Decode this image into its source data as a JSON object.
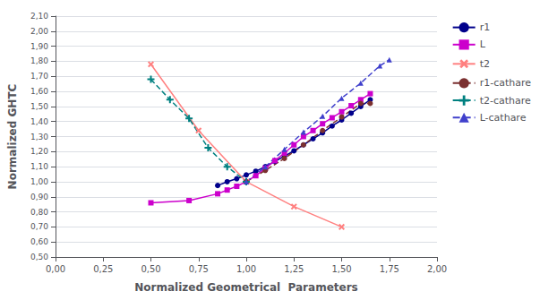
{
  "chart_data": {
    "type": "line",
    "xlabel": "Normalized Geometrical  Parameters",
    "ylabel": "Normalized GHTC",
    "xlim": [
      0.0,
      2.0
    ],
    "ylim": [
      0.5,
      2.1
    ],
    "xticks": [
      {
        "value": 0.0,
        "label": "0,00"
      },
      {
        "value": 0.25,
        "label": "0,25"
      },
      {
        "value": 0.5,
        "label": "0,50"
      },
      {
        "value": 0.75,
        "label": "0,75"
      },
      {
        "value": 1.0,
        "label": "1,00"
      },
      {
        "value": 1.25,
        "label": "1,25"
      },
      {
        "value": 1.5,
        "label": "1,50"
      },
      {
        "value": 1.75,
        "label": "1,75"
      },
      {
        "value": 2.0,
        "label": "2,00"
      }
    ],
    "yticks": [
      {
        "value": 0.5,
        "label": "0,50"
      },
      {
        "value": 0.6,
        "label": "0,60"
      },
      {
        "value": 0.7,
        "label": "0,70"
      },
      {
        "value": 0.8,
        "label": "0,80"
      },
      {
        "value": 0.9,
        "label": "0,90"
      },
      {
        "value": 1.0,
        "label": "1,00"
      },
      {
        "value": 1.1,
        "label": "1,10"
      },
      {
        "value": 1.2,
        "label": "1,20"
      },
      {
        "value": 1.3,
        "label": "1,30"
      },
      {
        "value": 1.4,
        "label": "1,40"
      },
      {
        "value": 1.5,
        "label": "1,50"
      },
      {
        "value": 1.6,
        "label": "1,60"
      },
      {
        "value": 1.7,
        "label": "1,70"
      },
      {
        "value": 1.8,
        "label": "1,80"
      },
      {
        "value": 1.9,
        "label": "1,90"
      },
      {
        "value": 2.0,
        "label": "2,00"
      },
      {
        "value": 2.1,
        "label": "2,10"
      }
    ],
    "grid": "y",
    "legend": "right",
    "series": [
      {
        "name": "r1",
        "color": "#00008B",
        "marker": "circle",
        "line_style": "solid",
        "x": [
          0.85,
          0.9,
          0.95,
          1.0,
          1.05,
          1.1,
          1.15,
          1.2,
          1.25,
          1.3,
          1.35,
          1.4,
          1.45,
          1.5,
          1.55,
          1.6,
          1.65
        ],
        "values": [
          0.975,
          1.0,
          1.02,
          1.045,
          1.07,
          1.1,
          1.135,
          1.17,
          1.205,
          1.245,
          1.285,
          1.325,
          1.37,
          1.41,
          1.455,
          1.5,
          1.545
        ]
      },
      {
        "name": "L",
        "color": "#CC00CC",
        "marker": "square",
        "line_style": "solid",
        "x": [
          0.5,
          0.7,
          0.85,
          0.9,
          0.95,
          1.0,
          1.05,
          1.1,
          1.15,
          1.2,
          1.25,
          1.3,
          1.35,
          1.4,
          1.45,
          1.5,
          1.55,
          1.6,
          1.65
        ],
        "values": [
          0.86,
          0.875,
          0.92,
          0.945,
          0.97,
          1.0,
          1.04,
          1.09,
          1.14,
          1.19,
          1.245,
          1.3,
          1.34,
          1.385,
          1.425,
          1.465,
          1.505,
          1.545,
          1.585
        ]
      },
      {
        "name": "t2",
        "color": "#FF8080",
        "marker": "x",
        "line_style": "solid",
        "x": [
          0.5,
          0.75,
          1.0,
          1.25,
          1.5
        ],
        "values": [
          1.78,
          1.34,
          1.0,
          0.835,
          0.7
        ]
      },
      {
        "name": "r1-cathare",
        "color": "#7B3030",
        "marker": "circle",
        "line_style": "dashed",
        "x": [
          1.0,
          1.1,
          1.2,
          1.3,
          1.4,
          1.5,
          1.6,
          1.65
        ],
        "values": [
          1.0,
          1.075,
          1.155,
          1.245,
          1.34,
          1.43,
          1.52,
          1.52
        ]
      },
      {
        "name": "t2-cathare",
        "color": "#008080",
        "marker": "plus",
        "line_style": "dashed",
        "x": [
          0.5,
          0.6,
          0.7,
          0.8,
          0.9,
          1.0
        ],
        "values": [
          1.68,
          1.545,
          1.42,
          1.225,
          1.1,
          1.0
        ]
      },
      {
        "name": "L-cathare",
        "color": "#4040CC",
        "marker": "triangle",
        "line_style": "dashed",
        "x": [
          1.0,
          1.1,
          1.2,
          1.3,
          1.4,
          1.5,
          1.6,
          1.7,
          1.75
        ],
        "values": [
          1.0,
          1.1,
          1.215,
          1.33,
          1.435,
          1.555,
          1.655,
          1.77,
          1.81
        ]
      }
    ]
  }
}
